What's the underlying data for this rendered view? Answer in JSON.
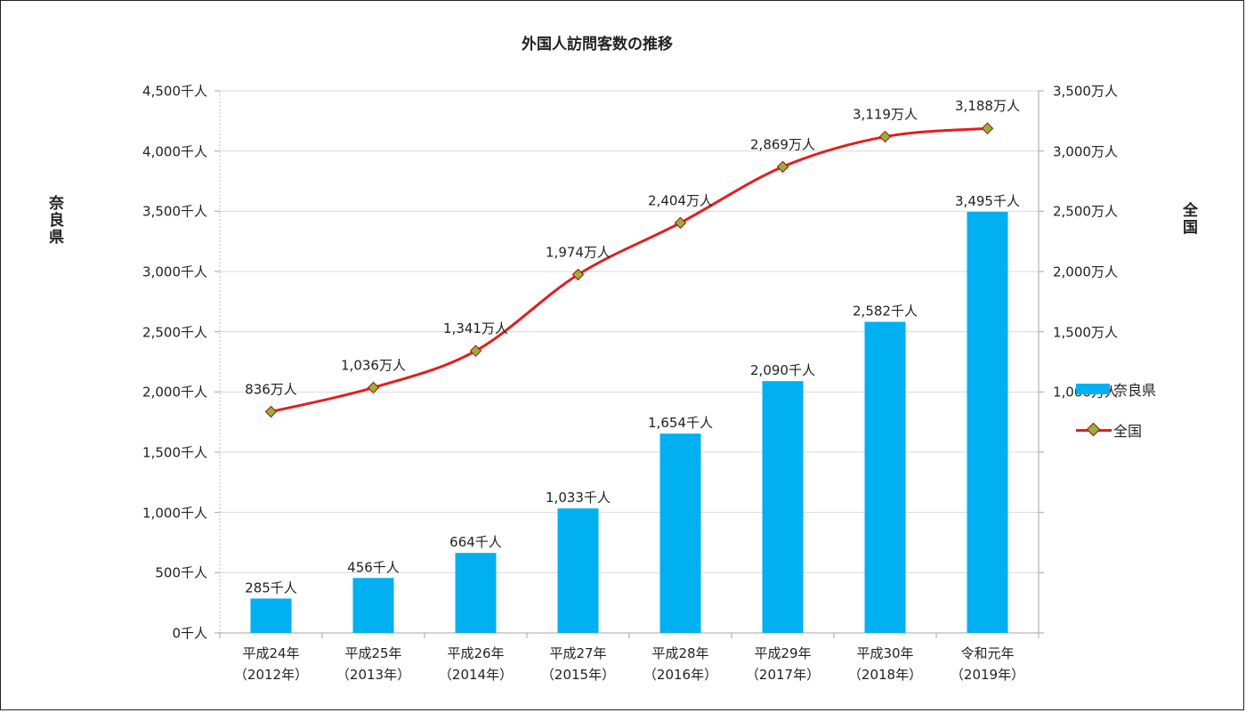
{
  "chart_data": {
    "type": "bar+line",
    "title": "外国人訪問客数の推移",
    "categories": [
      [
        "平成24年",
        "（2012年）"
      ],
      [
        "平成25年",
        "（2013年）"
      ],
      [
        "平成26年",
        "（2014年）"
      ],
      [
        "平成27年",
        "（2015年）"
      ],
      [
        "平成28年",
        "（2016年）"
      ],
      [
        "平成29年",
        "（2017年）"
      ],
      [
        "平成30年",
        "（2018年）"
      ],
      [
        "令和元年",
        "（2019年）"
      ]
    ],
    "left_axis": {
      "label": "奈良県",
      "min": 0,
      "max": 4500,
      "step": 500,
      "tick_labels": [
        "0千人",
        "500千人",
        "1,000千人",
        "1,500千人",
        "2,000千人",
        "2,500千人",
        "3,000千人",
        "3,500千人",
        "4,000千人",
        "4,500千人"
      ]
    },
    "right_axis": {
      "label": "全国",
      "min": -1000,
      "max": 3500,
      "tick_labels": [
        {
          "value": 1000,
          "text": "1,000万人"
        },
        {
          "value": 1500,
          "text": "1,500万人"
        },
        {
          "value": 2000,
          "text": "2,000万人"
        },
        {
          "value": 2500,
          "text": "2,500万人"
        },
        {
          "value": 3000,
          "text": "3,000万人"
        },
        {
          "value": 3500,
          "text": "3,500万人"
        }
      ]
    },
    "series": [
      {
        "name": "奈良県",
        "type": "bar",
        "axis": "left",
        "color": "#00B0F0",
        "values": [
          285,
          456,
          664,
          1033,
          1654,
          2090,
          2582,
          3495
        ],
        "labels": [
          "285千人",
          "456千人",
          "664千人",
          "1,033千人",
          "1,654千人",
          "2,090千人",
          "2,582千人",
          "3,495千人"
        ]
      },
      {
        "name": "全国",
        "type": "line",
        "axis": "right",
        "color": "#E0201E",
        "marker_color": "#8DB53C",
        "values": [
          836,
          1036,
          1341,
          1974,
          2404,
          2869,
          3119,
          3188
        ],
        "labels": [
          "836万人",
          "1,036万人",
          "1,341万人",
          "1,974万人",
          "2,404万人",
          "2,869万人",
          "3,119万人",
          "3,188万人"
        ]
      }
    ],
    "legend_position": "right",
    "grid": true
  }
}
